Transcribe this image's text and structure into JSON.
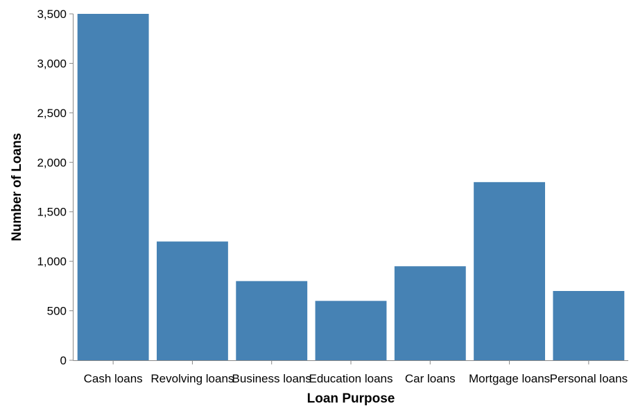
{
  "chart_data": {
    "type": "bar",
    "title": "",
    "xlabel": "Loan Purpose",
    "ylabel": "Number of Loans",
    "categories": [
      "Cash loans",
      "Revolving loans",
      "Business loans",
      "Education loans",
      "Car loans",
      "Mortgage loans",
      "Personal loans"
    ],
    "values": [
      3500,
      1200,
      800,
      600,
      950,
      1800,
      700
    ],
    "ylim": [
      0,
      3500
    ],
    "yticks": [
      0,
      500,
      1000,
      1500,
      2000,
      2500,
      3000,
      3500
    ],
    "ytick_labels": [
      "0",
      "500",
      "1,000",
      "1,500",
      "2,000",
      "2,500",
      "3,000",
      "3,500"
    ],
    "bar_color": "#4682b4",
    "axis_color": "#888888",
    "grid": false,
    "legend": "none"
  }
}
